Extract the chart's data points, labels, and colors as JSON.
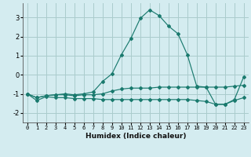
{
  "xlabel": "Humidex (Indice chaleur)",
  "background_color": "#d4ecf0",
  "grid_color": "#aacccc",
  "line_color": "#1a7a6e",
  "xlim": [
    -0.5,
    23.5
  ],
  "ylim": [
    -2.5,
    3.75
  ],
  "yticks": [
    -2,
    -1,
    0,
    1,
    2,
    3
  ],
  "xticks": [
    0,
    1,
    2,
    3,
    4,
    5,
    6,
    7,
    8,
    9,
    10,
    11,
    12,
    13,
    14,
    15,
    16,
    17,
    18,
    19,
    20,
    21,
    22,
    23
  ],
  "curve1_x": [
    0,
    1,
    2,
    3,
    4,
    5,
    6,
    7,
    8,
    9,
    10,
    11,
    12,
    13,
    14,
    15,
    16,
    17,
    18,
    19,
    20,
    21,
    22,
    23
  ],
  "curve1_y": [
    -1.0,
    -1.35,
    -1.15,
    -1.2,
    -1.2,
    -1.25,
    -1.25,
    -1.25,
    -1.3,
    -1.3,
    -1.3,
    -1.3,
    -1.3,
    -1.3,
    -1.3,
    -1.3,
    -1.3,
    -1.3,
    -1.35,
    -1.4,
    -1.55,
    -1.55,
    -1.35,
    -1.2
  ],
  "curve2_x": [
    0,
    1,
    2,
    3,
    4,
    5,
    6,
    7,
    8,
    9,
    10,
    11,
    12,
    13,
    14,
    15,
    16,
    17,
    18,
    19,
    20,
    21,
    22,
    23
  ],
  "curve2_y": [
    -1.0,
    -1.2,
    -1.1,
    -1.05,
    -1.05,
    -1.1,
    -1.05,
    -1.05,
    -1.0,
    -0.85,
    -0.75,
    -0.7,
    -0.7,
    -0.7,
    -0.65,
    -0.65,
    -0.65,
    -0.65,
    -0.65,
    -0.65,
    -0.65,
    -0.65,
    -0.6,
    -0.55
  ],
  "curve3_x": [
    0,
    1,
    2,
    3,
    4,
    5,
    6,
    7,
    8,
    9,
    10,
    11,
    12,
    13,
    14,
    15,
    16,
    17,
    18,
    19,
    20,
    21,
    22,
    23
  ],
  "curve3_y": [
    -1.0,
    -1.2,
    -1.1,
    -1.05,
    -1.0,
    -1.05,
    -1.0,
    -0.9,
    -0.35,
    0.05,
    1.05,
    1.9,
    2.95,
    3.4,
    3.1,
    2.55,
    2.15,
    1.05,
    -0.6,
    -0.65,
    -1.55,
    -1.55,
    -1.3,
    -0.1
  ]
}
